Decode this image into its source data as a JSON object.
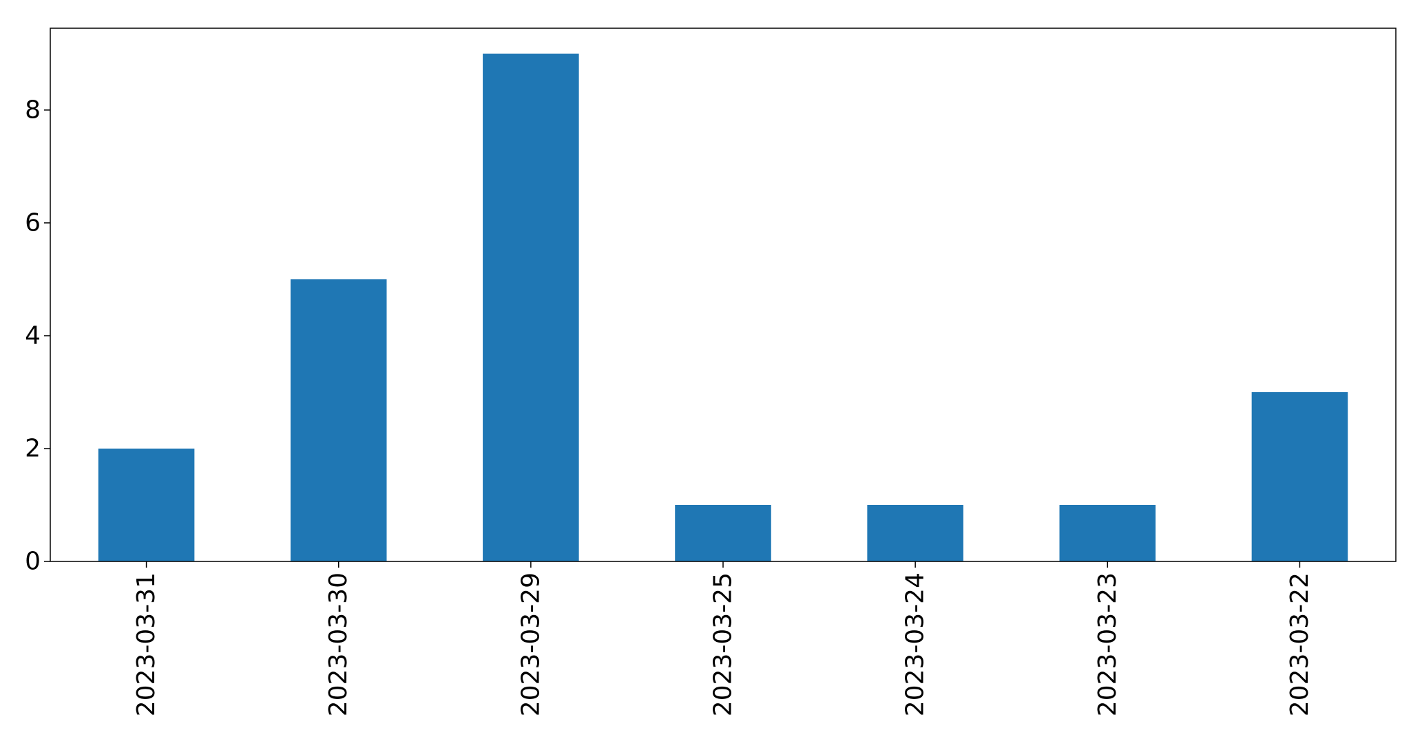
{
  "chart_data": {
    "type": "bar",
    "title": "",
    "xlabel": "",
    "ylabel": "",
    "categories": [
      "2023-03-31",
      "2023-03-30",
      "2023-03-29",
      "2023-03-25",
      "2023-03-24",
      "2023-03-23",
      "2023-03-22"
    ],
    "values": [
      2,
      5,
      9,
      1,
      1,
      1,
      3
    ],
    "ylim": [
      0,
      9.45
    ],
    "yticks": [
      0,
      2,
      4,
      6,
      8
    ],
    "bar_color": "#1f77b4",
    "grid": false,
    "legend": "none"
  }
}
